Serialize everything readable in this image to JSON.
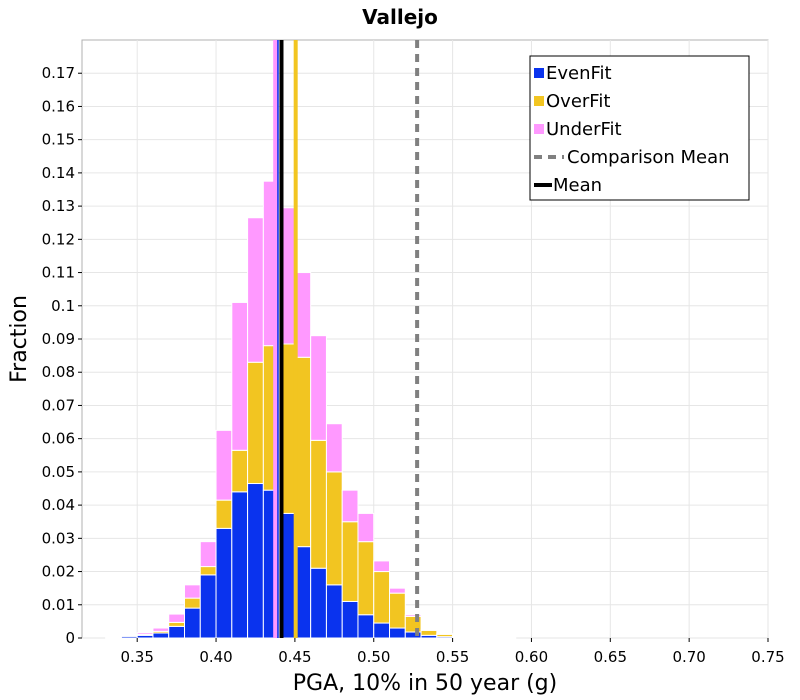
{
  "chart_data": {
    "type": "bar",
    "stacked": true,
    "title": "Vallejo",
    "xlabel": "PGA, 10% in 50 year (g)",
    "ylabel": "Fraction",
    "xlim": [
      0.315,
      0.75
    ],
    "ylim": [
      0,
      0.18
    ],
    "bin_width": 0.01,
    "x_ticks": [
      "0.35",
      "0.40",
      "0.45",
      "0.50",
      "0.55",
      "0.60",
      "0.65",
      "0.70",
      "0.75"
    ],
    "y_ticks": [
      "0",
      "0.01",
      "0.02",
      "0.03",
      "0.04",
      "0.05",
      "0.06",
      "0.07",
      "0.08",
      "0.09",
      "0.1",
      "0.11",
      "0.12",
      "0.13",
      "0.14",
      "0.15",
      "0.16",
      "0.17"
    ],
    "x": [
      0.335,
      0.345,
      0.355,
      0.365,
      0.375,
      0.385,
      0.395,
      0.405,
      0.415,
      0.425,
      0.435,
      0.445,
      0.455,
      0.465,
      0.475,
      0.485,
      0.495,
      0.505,
      0.515,
      0.525,
      0.535,
      0.545,
      0.555,
      0.565,
      0.575,
      0.585,
      0.595
    ],
    "series": [
      {
        "name": "EvenFit",
        "color": "#0a33ee",
        "values": [
          0.0003,
          0.0005,
          0.0008,
          0.0015,
          0.0035,
          0.009,
          0.019,
          0.033,
          0.044,
          0.0465,
          0.0445,
          0.0375,
          0.0275,
          0.021,
          0.016,
          0.011,
          0.007,
          0.0045,
          0.003,
          0.0018,
          0.0008,
          0.0004,
          0.0002,
          0.0001,
          0.0001,
          0,
          0
        ]
      },
      {
        "name": "OverFit",
        "color": "#f2c521",
        "values": [
          0.0001,
          0.0002,
          0.0003,
          0.0005,
          0.0012,
          0.003,
          0.0025,
          0.0085,
          0.0125,
          0.0365,
          0.0435,
          0.051,
          0.057,
          0.0385,
          0.034,
          0.024,
          0.022,
          0.0155,
          0.0105,
          0.0047,
          0.0015,
          0.0007,
          0.0003,
          0.0002,
          0.0001,
          0.0001,
          0
        ]
      },
      {
        "name": "UnderFit",
        "color": "#ff99ff",
        "values": [
          0.0001,
          0.0002,
          0.0005,
          0.001,
          0.0025,
          0.004,
          0.0075,
          0.021,
          0.0445,
          0.0435,
          0.0495,
          0.041,
          0.0255,
          0.0315,
          0.0145,
          0.0095,
          0.0085,
          0.0032,
          0.0015,
          0.0005,
          0.0003,
          0.0002,
          0.0001,
          0.0001,
          0.0001,
          0,
          0
        ]
      }
    ],
    "mean_lines": [
      {
        "name": "EvenFit mean",
        "x": 0.4385,
        "color": "#0a33ee"
      },
      {
        "name": "UnderFit mean",
        "x": 0.4375,
        "color": "#ff99ff"
      },
      {
        "name": "OverFit mean",
        "x": 0.4505,
        "color": "#f2c521"
      },
      {
        "name": "Mean",
        "x": 0.4415,
        "color": "#000000"
      }
    ],
    "comparison_mean": {
      "name": "Comparison Mean",
      "x": 0.5275,
      "color": "#808080"
    },
    "legend": {
      "position": "top-right",
      "entries": [
        {
          "label": "EvenFit",
          "style": "square",
          "color": "#0a33ee"
        },
        {
          "label": "OverFit",
          "style": "square",
          "color": "#f2c521"
        },
        {
          "label": "UnderFit",
          "style": "square",
          "color": "#ff99ff"
        },
        {
          "label": "Comparison Mean",
          "style": "dashed-line",
          "color": "#808080"
        },
        {
          "label": "Mean",
          "style": "line",
          "color": "#000000"
        }
      ]
    },
    "grid": true
  }
}
